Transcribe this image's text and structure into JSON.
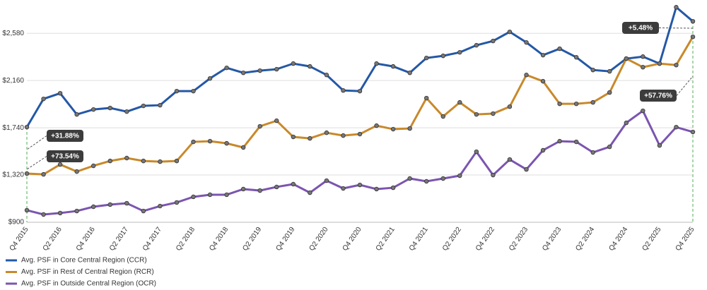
{
  "chart_data": {
    "type": "line",
    "categories": [
      "Q4 2015",
      null,
      "Q2 2016",
      null,
      "Q4 2016",
      null,
      "Q2 2017",
      null,
      "Q4 2017",
      null,
      "Q2 2018",
      null,
      "Q4 2018",
      null,
      "Q2 2019",
      null,
      "Q4 2019",
      null,
      "Q2 2020",
      null,
      "Q4 2020",
      null,
      "Q2 2021",
      null,
      "Q4 2021",
      null,
      "Q2 2022",
      null,
      "Q4 2022",
      null,
      "Q2 2023",
      null,
      "Q4 2023",
      null,
      "Q2 2024",
      null,
      "Q4 2024",
      null,
      "Q2 2025",
      null,
      "Q4 2025"
    ],
    "series": [
      {
        "name": "Avg. PSF in Core Central Region (CCR)",
        "color": "#2458a6",
        "values": [
          1746,
          1997,
          2047,
          1859,
          1903,
          1916,
          1884,
          1935,
          1941,
          2066,
          2066,
          2179,
          2273,
          2229,
          2248,
          2261,
          2311,
          2286,
          2210,
          2072,
          2066,
          2311,
          2286,
          2229,
          2361,
          2380,
          2411,
          2474,
          2512,
          2593,
          2499,
          2386,
          2443,
          2367,
          2254,
          2242,
          2355,
          2373,
          2311,
          2812,
          2687
        ]
      },
      {
        "name": "Avg. PSF in Rest of Central Region (RCR)",
        "color": "#c8892a",
        "values": [
          1333,
          1326,
          1414,
          1351,
          1402,
          1445,
          1471,
          1445,
          1439,
          1445,
          1615,
          1621,
          1602,
          1565,
          1753,
          1803,
          1659,
          1646,
          1696,
          1671,
          1684,
          1759,
          1728,
          1734,
          2004,
          1841,
          1966,
          1859,
          1866,
          1928,
          2210,
          2154,
          1953,
          1953,
          1966,
          2054,
          2355,
          2279,
          2311,
          2298,
          2549
        ]
      },
      {
        "name": "Avg. PSF in Outside Central Region (OCR)",
        "color": "#7b55b0",
        "values": [
          1007,
          969,
          982,
          1000,
          1038,
          1057,
          1069,
          1000,
          1044,
          1076,
          1126,
          1145,
          1145,
          1195,
          1182,
          1214,
          1239,
          1163,
          1270,
          1201,
          1232,
          1195,
          1207,
          1289,
          1264,
          1289,
          1314,
          1527,
          1320,
          1458,
          1370,
          1540,
          1621,
          1615,
          1521,
          1571,
          1784,
          1891,
          1583,
          1746,
          1703
        ]
      }
    ],
    "ylim": [
      900,
      2845
    ],
    "yticks": [
      {
        "value": 900,
        "label": "$900"
      },
      {
        "value": 1320,
        "label": "$1,320"
      },
      {
        "value": 1740,
        "label": "$1,740"
      },
      {
        "value": 2160,
        "label": "$2,160"
      },
      {
        "value": 2580,
        "label": "$2,580"
      }
    ],
    "grid": true,
    "legend": "bottom-left",
    "annotations": [
      "+31.88%",
      "+73.54%",
      "+5.48%",
      "+57.76%"
    ]
  }
}
